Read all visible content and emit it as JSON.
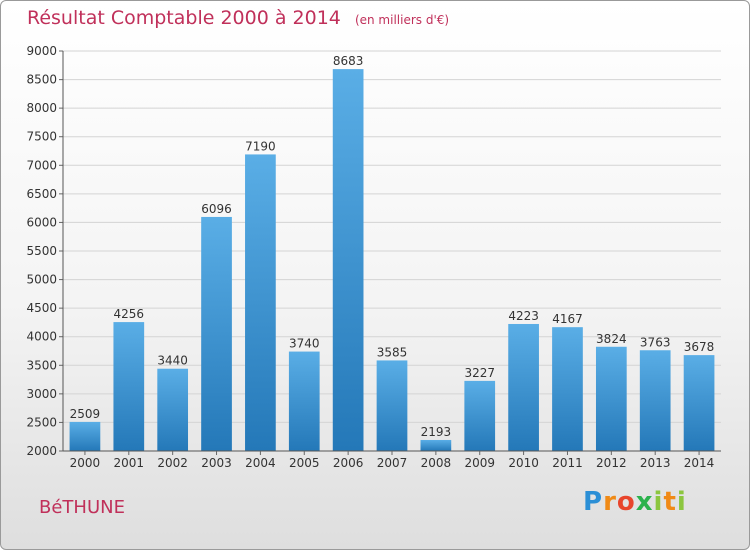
{
  "chart_data": {
    "type": "bar",
    "title": "Résultat Comptable 2000 à 2014",
    "subtitle": "(en milliers d'€)",
    "categories": [
      "2000",
      "2001",
      "2002",
      "2003",
      "2004",
      "2005",
      "2006",
      "2007",
      "2008",
      "2009",
      "2010",
      "2011",
      "2012",
      "2013",
      "2014"
    ],
    "values": [
      2509,
      4256,
      3440,
      6096,
      7190,
      3740,
      8683,
      3585,
      2193,
      3227,
      4223,
      4167,
      3824,
      3763,
      3678
    ],
    "yticks": [
      2000,
      2500,
      3000,
      3500,
      4000,
      4500,
      5000,
      5500,
      6000,
      6500,
      7000,
      7500,
      8000,
      8500,
      9000
    ],
    "ylim": [
      2000,
      9000
    ],
    "xlabel": "",
    "ylabel": "",
    "grid": true,
    "bar_color_top": "#5aaee6",
    "bar_color_bottom": "#2478b8"
  },
  "location": "BéTHUNE",
  "brand": {
    "parts": [
      "P",
      "r",
      "o",
      "x",
      "i",
      "t",
      "i"
    ]
  }
}
